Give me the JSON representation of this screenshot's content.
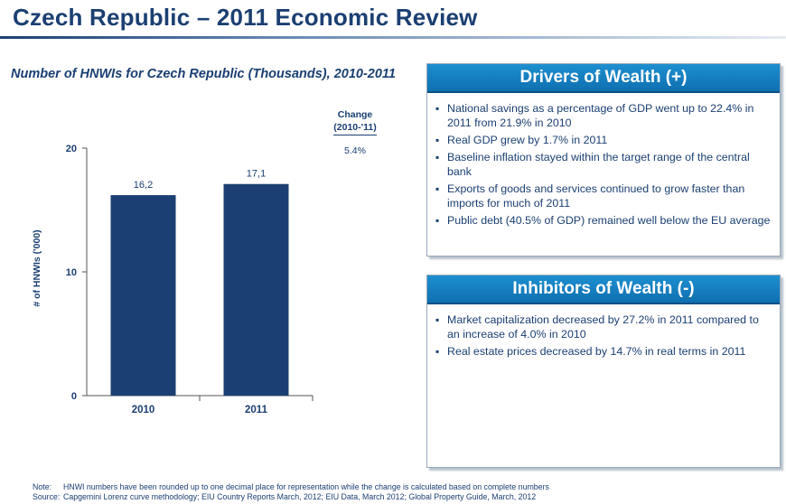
{
  "page": {
    "title": "Czech Republic – 2011 Economic Review"
  },
  "chart_data": {
    "type": "bar",
    "title": "Number of HNWIs for Czech Republic (Thousands), 2010-2011",
    "categories": [
      "2010",
      "2011"
    ],
    "values": [
      16.2,
      17.1
    ],
    "value_labels": [
      "16,2",
      "17,1"
    ],
    "ylabel": "# of HNWIs ('000)",
    "xlabel": "",
    "ylim": [
      0,
      20
    ],
    "yticks": [
      0,
      10,
      20
    ],
    "grid": false,
    "bar_color": "#1b3f72",
    "change": {
      "header_line1": "Change",
      "header_line2": "(2010-'11)",
      "value": "5.4%"
    }
  },
  "drivers": {
    "title": "Drivers of Wealth (+)",
    "bullet": "▪",
    "items": [
      "National savings as a percentage of GDP went up to 22.4% in 2011 from 21.9% in 2010",
      "Real GDP grew by 1.7% in 2011",
      "Baseline inflation stayed within the target range of the central bank",
      "Exports of goods and services continued to grow faster than imports for much of 2011",
      "Public debt (40.5% of GDP) remained well below the EU average"
    ]
  },
  "inhibitors": {
    "title": "Inhibitors of Wealth (-)",
    "bullet": "▪",
    "items": [
      "Market capitalization decreased by 27.2% in 2011 compared to an increase of 4.0% in 2010",
      "Real estate prices decreased by 14.7% in real terms in 2011"
    ]
  },
  "footnotes": {
    "note_label": "Note:",
    "note_text": "HNWI numbers have been rounded up to one decimal place for representation while the change is calculated based on complete numbers",
    "source_label": "Source:",
    "source_text": "Capgemini Lorenz curve methodology; EIU Country Reports March, 2012; EIU Data, March 2012; Global Property Guide, March, 2012"
  },
  "colors": {
    "navy": "#1b3f72",
    "header_blue": "#1584c7"
  }
}
